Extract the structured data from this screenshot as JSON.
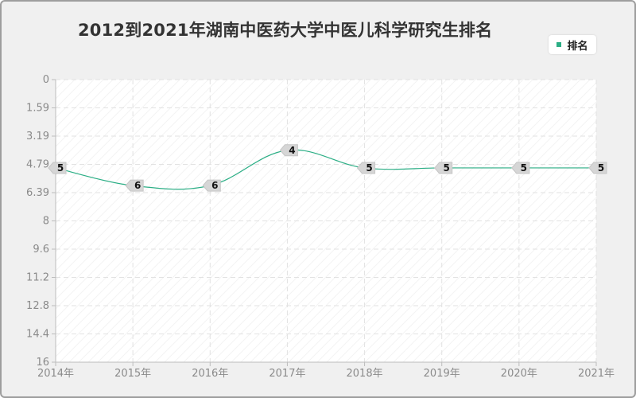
{
  "title": "2012到2021年湖南中医药大学中医儿科学研究生排名",
  "legend": {
    "label": "排名",
    "color": "#2bae85"
  },
  "chart_data": {
    "type": "line",
    "title": "2012到2021年湖南中医药大学中医儿科学研究生排名",
    "x": [
      "2014年",
      "2015年",
      "2016年",
      "2017年",
      "2018年",
      "2019年",
      "2020年",
      "2021年"
    ],
    "series": [
      {
        "name": "排名",
        "values": [
          5,
          6,
          6,
          4,
          5,
          5,
          5,
          5
        ],
        "color": "#2bae85"
      }
    ],
    "y_ticks": [
      "0",
      "1.59",
      "3.19",
      "4.79",
      "6.39",
      "8",
      "9.6",
      "11.2",
      "12.8",
      "14.4",
      "16"
    ],
    "ylim": [
      0,
      16
    ],
    "y_inverted": true,
    "grid": true,
    "legend_position": "top-right"
  }
}
